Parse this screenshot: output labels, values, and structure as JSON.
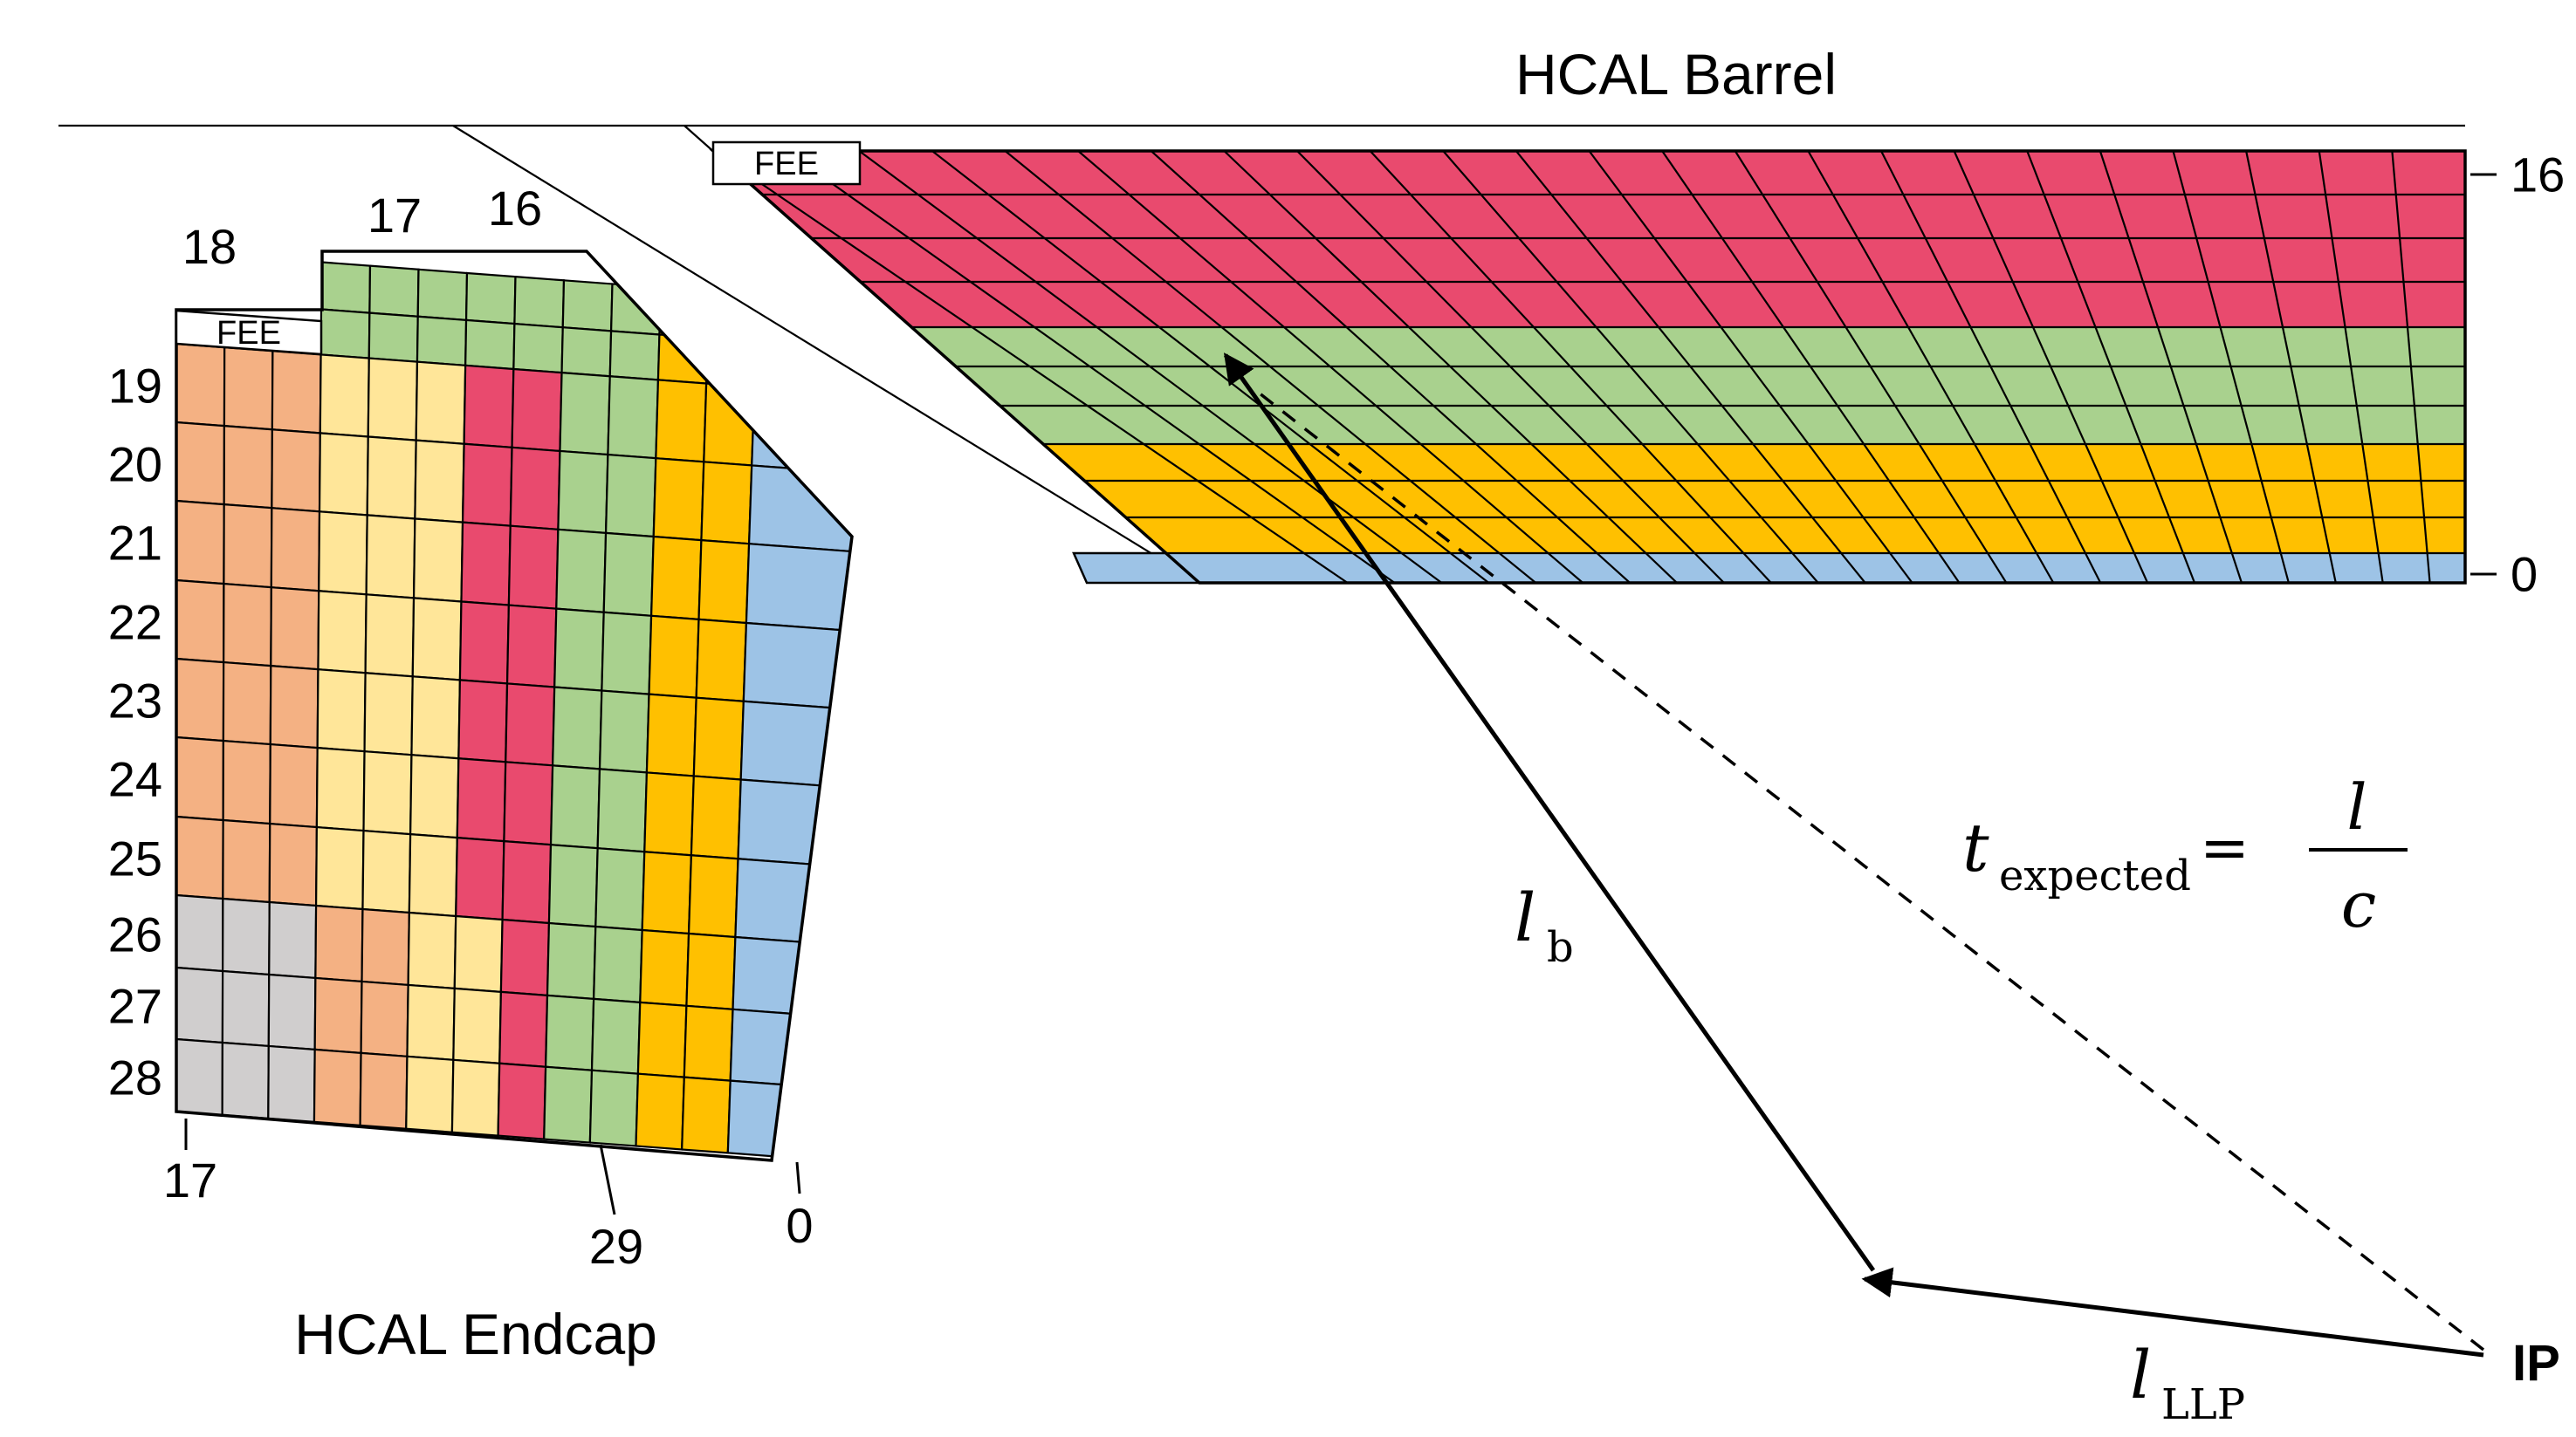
{
  "colors": {
    "pink": "#E94A6E",
    "green": "#A9D18E",
    "orange": "#FFC000",
    "blue": "#9DC3E6",
    "tan": "#F4B183",
    "yellow": "#FFE699",
    "gray": "#D0CECE",
    "white": "#FFFFFF",
    "line": "#000000"
  },
  "barrel": {
    "title": "HCAL Barrel",
    "fee_label": "FEE",
    "axis_right": {
      "top_label": "16",
      "bottom_label": "0"
    },
    "row_colors": [
      "pink",
      "pink",
      "pink",
      "pink",
      "green",
      "green",
      "green",
      "orange",
      "orange",
      "orange",
      "blue"
    ],
    "n_tower_lines": 25
  },
  "endcap": {
    "title": "HCAL Endcap",
    "fee_label": "FEE",
    "top_labels": [
      "18",
      "17",
      "16"
    ],
    "left_labels": [
      "19",
      "20",
      "21",
      "22",
      "23",
      "24",
      "25",
      "26",
      "27",
      "28"
    ],
    "bottom_left_label": "17",
    "bottom_mid_label": "29",
    "bottom_right_label": "0",
    "grid_rows": [
      "...GGGGGGGOOB",
      "...GGGGGGGOOB",
      "TTTYYYPPGGOOB",
      "TTTYYYPPGGOOB",
      "TTTYYYPPGGOOB",
      "TTTYYYPPGGOOB",
      "TTTYYYPPGGOOB",
      "TTTYYYPPGGOOB",
      "TTTYYYPPGGOOB",
      "XXXTTYYPGGOOB",
      "XXXTTYYPGGOOB",
      "XXXTTYYPGGOOB"
    ]
  },
  "annotations": {
    "ip": "IP",
    "lb": {
      "base": "l",
      "sub": "b"
    },
    "lllp": {
      "base": "l",
      "sub": "LLP"
    },
    "formula": {
      "lhs": "t",
      "lhs_sub": "expected",
      "eq": "=",
      "num": "l",
      "den": "c"
    }
  }
}
